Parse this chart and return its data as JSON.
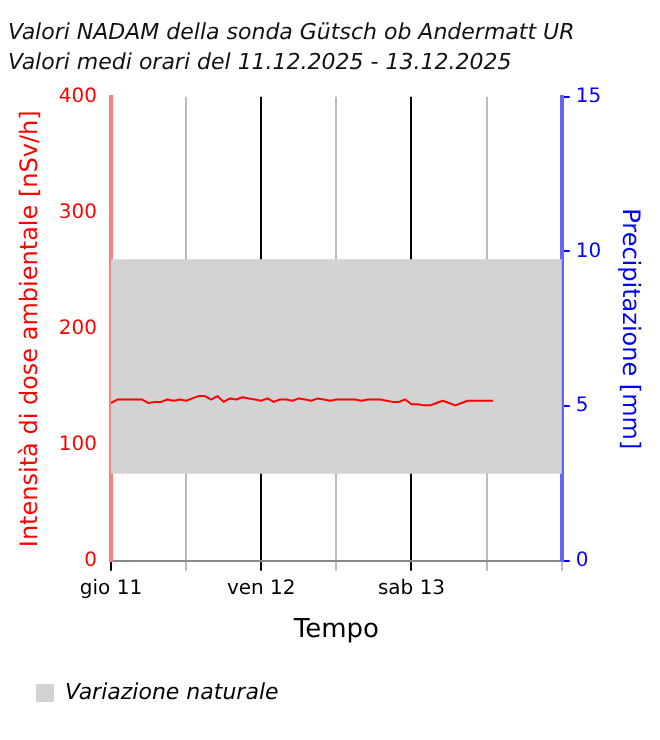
{
  "chart_data": {
    "type": "line",
    "title": "Valori NADAM della sonda Gütsch ob Andermatt UR",
    "subtitle": "Valori medi orari del 11.12.2025 - 13.12.2025",
    "xlabel": "Tempo",
    "ylabel": "Intensità di dose ambientale [nSv/h]",
    "y2label": "Precipitazione [mm]",
    "x": [
      "2025-12-11T00:00",
      "2025-12-11T01:00",
      "2025-12-11T02:00",
      "2025-12-11T03:00",
      "2025-12-11T04:00",
      "2025-12-11T05:00",
      "2025-12-11T06:00",
      "2025-12-11T07:00",
      "2025-12-11T08:00",
      "2025-12-11T09:00",
      "2025-12-11T10:00",
      "2025-12-11T11:00",
      "2025-12-11T12:00",
      "2025-12-11T13:00",
      "2025-12-11T14:00",
      "2025-12-11T15:00",
      "2025-12-11T16:00",
      "2025-12-11T17:00",
      "2025-12-11T18:00",
      "2025-12-11T19:00",
      "2025-12-11T20:00",
      "2025-12-11T21:00",
      "2025-12-11T22:00",
      "2025-12-11T23:00",
      "2025-12-12T00:00",
      "2025-12-12T01:00",
      "2025-12-12T02:00",
      "2025-12-12T03:00",
      "2025-12-12T04:00",
      "2025-12-12T05:00",
      "2025-12-12T06:00",
      "2025-12-12T07:00",
      "2025-12-12T08:00",
      "2025-12-12T09:00",
      "2025-12-12T10:00",
      "2025-12-12T11:00",
      "2025-12-12T12:00",
      "2025-12-12T13:00",
      "2025-12-12T14:00",
      "2025-12-12T15:00",
      "2025-12-12T16:00",
      "2025-12-12T17:00",
      "2025-12-12T18:00",
      "2025-12-12T19:00",
      "2025-12-12T20:00",
      "2025-12-12T21:00",
      "2025-12-12T22:00",
      "2025-12-12T23:00",
      "2025-12-13T00:00",
      "2025-12-13T01:00",
      "2025-12-13T02:00",
      "2025-12-13T03:00",
      "2025-12-13T04:00",
      "2025-12-13T05:00",
      "2025-12-13T06:00",
      "2025-12-13T07:00",
      "2025-12-13T08:00",
      "2025-12-13T09:00",
      "2025-12-13T10:00",
      "2025-12-13T11:00",
      "2025-12-13T12:00",
      "2025-12-13T13:00"
    ],
    "series": [
      {
        "color": "#ff0000",
        "values": [
          136,
          139,
          139,
          139,
          139,
          139,
          136,
          137,
          137,
          139,
          138,
          139,
          138,
          140,
          142,
          142,
          139,
          142,
          137,
          140,
          139,
          141,
          140,
          139,
          138,
          140,
          137,
          139,
          139,
          138,
          140,
          139,
          138,
          140,
          139,
          138,
          139,
          139,
          139,
          139,
          138,
          139,
          139,
          139,
          138,
          137,
          137,
          139,
          135,
          135,
          134,
          134,
          136,
          138,
          136,
          134,
          136,
          138,
          138,
          138,
          138,
          138
        ]
      }
    ],
    "xlim": [
      "2025-12-11T00:00",
      "2025-12-14T00:00"
    ],
    "xticks": [
      {
        "value": "2025-12-11T00:00",
        "label": "gio 11"
      },
      {
        "value": "2025-12-11T12:00",
        "label": null
      },
      {
        "value": "2025-12-12T00:00",
        "label": "ven 12"
      },
      {
        "value": "2025-12-12T12:00",
        "label": null
      },
      {
        "value": "2025-12-13T00:00",
        "label": "sab 13"
      },
      {
        "value": "2025-12-13T12:00",
        "label": null
      },
      {
        "value": "2025-12-14T00:00",
        "label": null
      }
    ],
    "ylim": [
      0,
      400
    ],
    "yticks": [
      0,
      100,
      200,
      300,
      400
    ],
    "y2lim": [
      0,
      15
    ],
    "y2ticks": [
      0,
      5,
      10,
      15
    ],
    "bands": [
      {
        "axis": "y",
        "from": 75,
        "to": 260,
        "label": "Variazione naturale",
        "color": "#d3d3d3"
      }
    ],
    "grid": "x",
    "legend": "bottom left",
    "marker": "none",
    "line_style": "solid"
  }
}
